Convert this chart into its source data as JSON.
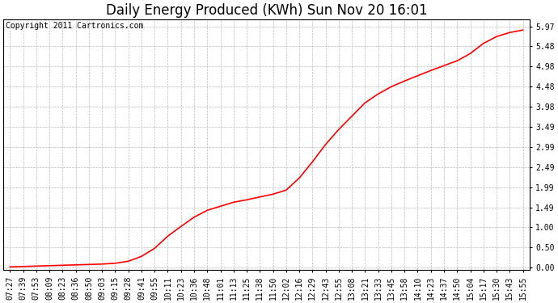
{
  "title": "Daily Energy Produced (KWh) Sun Nov 20 16:01",
  "copyright_text": "Copyright 2011 Cartronics.com",
  "line_color": "#ff0000",
  "line_width": 1.2,
  "background_color": "#ffffff",
  "plot_bg_color": "#ffffff",
  "grid_color": "#bbbbbb",
  "grid_style": "--",
  "yticks": [
    0.0,
    0.5,
    1.0,
    1.49,
    1.99,
    2.49,
    2.99,
    3.49,
    3.98,
    4.48,
    4.98,
    5.48,
    5.97
  ],
  "ylim": [
    -0.05,
    6.15
  ],
  "xtick_labels": [
    "07:27",
    "07:39",
    "07:53",
    "08:09",
    "08:23",
    "08:36",
    "08:50",
    "09:03",
    "09:15",
    "09:28",
    "09:41",
    "09:55",
    "10:11",
    "10:23",
    "10:36",
    "10:48",
    "11:01",
    "11:13",
    "11:25",
    "11:38",
    "11:50",
    "12:02",
    "12:16",
    "12:29",
    "12:43",
    "12:55",
    "13:08",
    "13:21",
    "13:33",
    "13:45",
    "13:58",
    "14:10",
    "14:23",
    "14:37",
    "14:50",
    "15:04",
    "15:17",
    "15:30",
    "15:43",
    "15:55"
  ],
  "y_values": [
    0.02,
    0.03,
    0.04,
    0.05,
    0.06,
    0.07,
    0.08,
    0.09,
    0.11,
    0.16,
    0.28,
    0.48,
    0.78,
    1.02,
    1.25,
    1.42,
    1.52,
    1.62,
    1.68,
    1.75,
    1.82,
    1.92,
    2.22,
    2.62,
    3.05,
    3.42,
    3.75,
    4.08,
    4.3,
    4.48,
    4.62,
    4.75,
    4.88,
    5.0,
    5.12,
    5.3,
    5.55,
    5.72,
    5.82,
    5.88
  ],
  "title_fontsize": 12,
  "copyright_fontsize": 7,
  "tick_fontsize": 7,
  "figwidth": 6.9,
  "figheight": 3.75,
  "dpi": 100
}
